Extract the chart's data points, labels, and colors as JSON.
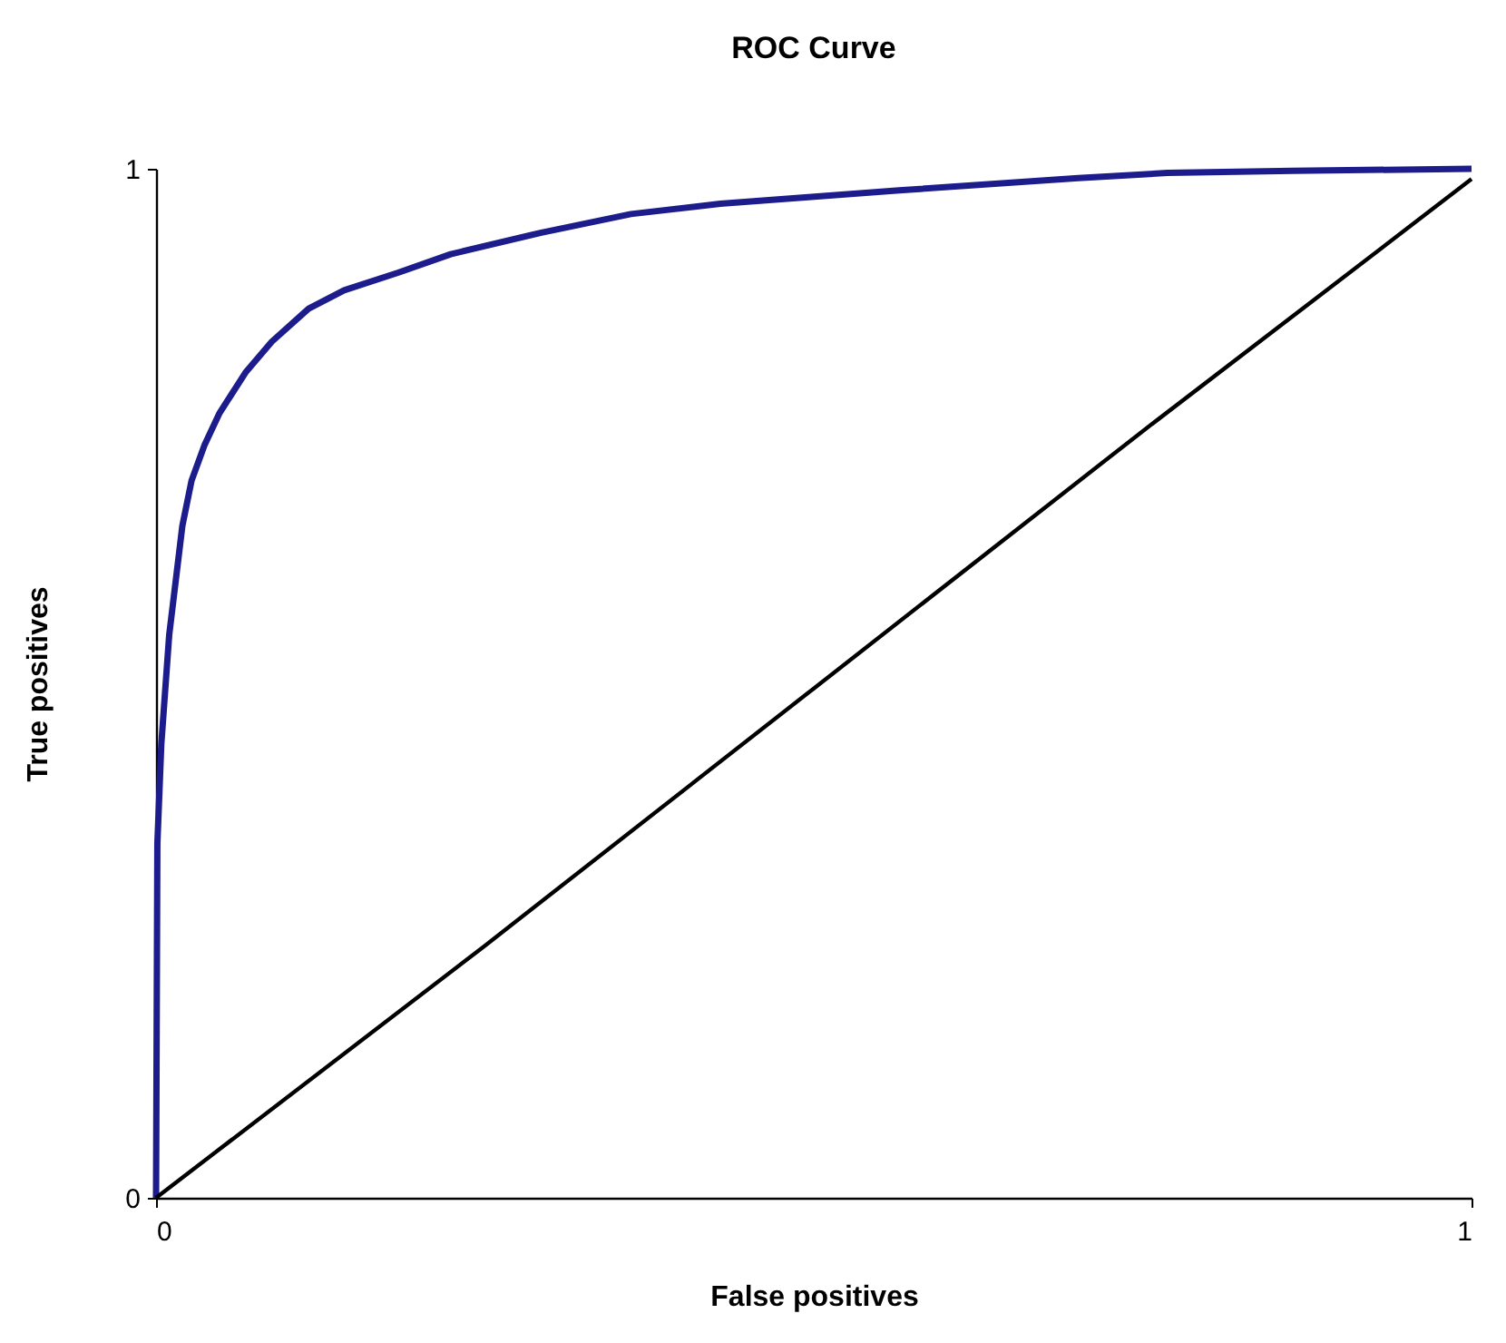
{
  "chart_data": {
    "type": "line",
    "title": "ROC Curve",
    "xlabel": "False positives",
    "ylabel": "True positives",
    "xlim": [
      0,
      1
    ],
    "ylim": [
      0,
      1
    ],
    "xticks": [
      0,
      1
    ],
    "yticks": [
      0,
      1
    ],
    "grid": false,
    "marker": "none",
    "line_style": "solid",
    "series": [
      {
        "color": "#1c1c8c",
        "x": [
          0,
          0.001,
          0.004,
          0.01,
          0.015,
          0.02,
          0.027,
          0.037,
          0.048,
          0.068,
          0.088,
          0.116,
          0.143,
          0.184,
          0.224,
          0.293,
          0.361,
          0.429,
          0.565,
          0.701,
          0.769,
          0.864,
          1
        ],
        "values": [
          0,
          0.344,
          0.441,
          0.547,
          0.6,
          0.653,
          0.697,
          0.732,
          0.762,
          0.802,
          0.832,
          0.864,
          0.882,
          0.899,
          0.917,
          0.938,
          0.956,
          0.966,
          0.979,
          0.991,
          0.996,
          0.998,
          1
        ]
      },
      {
        "color": "#000000",
        "x": [
          0,
          0.25,
          0.5,
          0.75,
          1
        ],
        "values": [
          0,
          0.245,
          0.495,
          0.745,
          0.99
        ]
      }
    ]
  }
}
